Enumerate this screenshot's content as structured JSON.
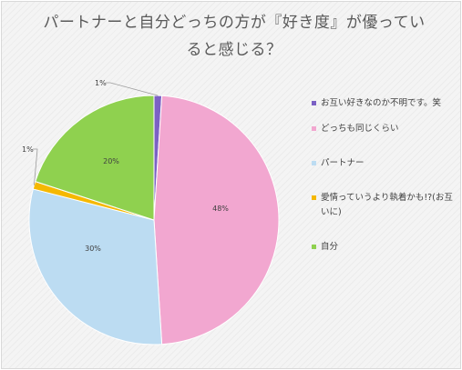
{
  "chart_data": {
    "type": "pie",
    "title": "パートナーと自分どっちの方が『好き度』が優ってい ると感じる？",
    "slices": [
      {
        "name": "お互い好きなのか不明です。笑",
        "value": 1,
        "label": "1%",
        "color": "#7b61c4"
      },
      {
        "name": "どっちも同じくらい",
        "value": 48,
        "label": "48%",
        "color": "#f2a7d0"
      },
      {
        "name": "パートナー",
        "value": 30,
        "label": "30%",
        "color": "#bcdcf2"
      },
      {
        "name": "愛情っていうより執着かも!?(お互いに)",
        "value": 1,
        "label": "1%",
        "color": "#f5b800"
      },
      {
        "name": "自分",
        "value": 20,
        "label": "20%",
        "color": "#8fd14f"
      }
    ],
    "legend_position": "right"
  }
}
